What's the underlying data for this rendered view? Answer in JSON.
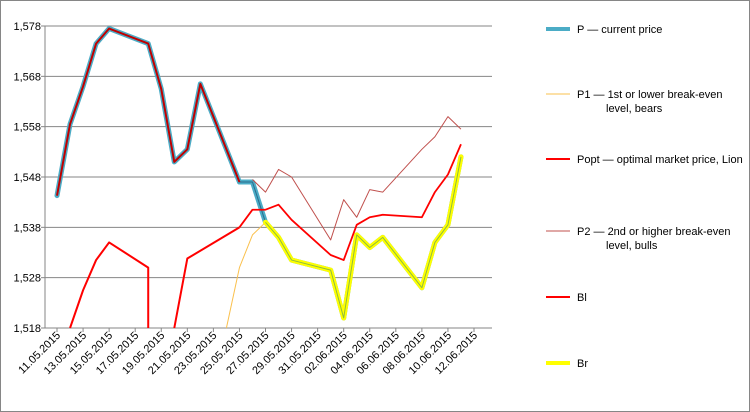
{
  "chart_data": {
    "type": "line",
    "title": "",
    "xlabel": "",
    "ylabel": "",
    "ylim": [
      1518,
      1578
    ],
    "yticks": [
      "1,518",
      "1,528",
      "1,538",
      "1,548",
      "1,558",
      "1,568",
      "1,578"
    ],
    "ytick_values": [
      1518,
      1528,
      1538,
      1548,
      1558,
      1568,
      1578
    ],
    "xticks": [
      "11.05.2015",
      "13.05.2015",
      "15.05.2015",
      "17.05.2015",
      "19.05.2015",
      "21.05.2015",
      "23.05.2015",
      "25.05.2015",
      "27.05.2015",
      "29.05.2015",
      "31.05.2015",
      "02.06.2015",
      "04.06.2015",
      "06.06.2015",
      "08.06.2015",
      "10.06.2015",
      "12.06.2015"
    ],
    "xlim": [
      "11.05.2015",
      "12.06.2015"
    ],
    "grid": "horizontal",
    "legend_position": "right",
    "series": [
      {
        "name": "P — current price",
        "color": "#4bacc6",
        "style": "halo",
        "points": [
          [
            "11.05.2015",
            1544.3
          ],
          [
            "12.05.2015",
            1558.5
          ],
          [
            "13.05.2015",
            1566.0
          ],
          [
            "14.05.2015",
            1574.5
          ],
          [
            "15.05.2015",
            1577.5
          ],
          [
            "18.05.2015",
            1574.5
          ],
          [
            "19.05.2015",
            1565.5
          ],
          [
            "20.05.2015",
            1551.0
          ],
          [
            "21.05.2015",
            1553.5
          ],
          [
            "22.05.2015",
            1566.5
          ],
          [
            "25.05.2015",
            1547.0
          ],
          [
            "26.05.2015",
            1547.0
          ],
          [
            "27.05.2015",
            1539.0
          ],
          [
            "28.05.2015",
            1536.0
          ],
          [
            "29.05.2015",
            1531.5
          ],
          [
            "01.06.2015",
            1529.5
          ],
          [
            "02.06.2015",
            1520.0
          ],
          [
            "03.06.2015",
            1536.5
          ],
          [
            "04.06.2015",
            1534.0
          ],
          [
            "05.06.2015",
            1536.0
          ],
          [
            "08.06.2015",
            1526.0
          ],
          [
            "09.06.2015",
            1535.0
          ],
          [
            "10.06.2015",
            1538.5
          ],
          [
            "11.06.2015",
            1552.0
          ]
        ]
      },
      {
        "name": "P1 — 1st or lower break-even level, bears",
        "color": "#fac04d",
        "style": "thin",
        "points": [
          [
            "24.05.2015",
            1518.0
          ],
          [
            "25.05.2015",
            1530.0
          ],
          [
            "26.05.2015",
            1536.5
          ],
          [
            "27.05.2015",
            1539.0
          ]
        ]
      },
      {
        "name": "Popt — optimal market price, Lion",
        "color": "#ff0000",
        "style": "medium",
        "points": [
          [
            "25.05.2015",
            1538.0
          ],
          [
            "26.05.2015",
            1541.5
          ],
          [
            "27.05.2015",
            1541.5
          ],
          [
            "28.05.2015",
            1542.5
          ],
          [
            "29.05.2015",
            1539.5
          ],
          [
            "01.06.2015",
            1532.5
          ],
          [
            "02.06.2015",
            1531.5
          ],
          [
            "03.06.2015",
            1538.5
          ],
          [
            "04.06.2015",
            1540.0
          ],
          [
            "05.06.2015",
            1540.5
          ],
          [
            "08.06.2015",
            1540.0
          ],
          [
            "09.06.2015",
            1545.0
          ],
          [
            "10.06.2015",
            1548.5
          ],
          [
            "11.06.2015",
            1554.5
          ]
        ]
      },
      {
        "name": "P2 — 2nd or higher break-even level, bulls",
        "color": "#c0504d",
        "style": "thin",
        "points": [
          [
            "26.05.2015",
            1547.5
          ],
          [
            "27.05.2015",
            1545.0
          ],
          [
            "28.05.2015",
            1549.5
          ],
          [
            "29.05.2015",
            1548.0
          ],
          [
            "01.06.2015",
            1535.5
          ],
          [
            "02.06.2015",
            1543.5
          ],
          [
            "03.06.2015",
            1540.0
          ],
          [
            "04.06.2015",
            1545.5
          ],
          [
            "05.06.2015",
            1545.0
          ],
          [
            "08.06.2015",
            1553.5
          ],
          [
            "09.06.2015",
            1556.0
          ],
          [
            "10.06.2015",
            1560.0
          ],
          [
            "11.06.2015",
            1557.5
          ]
        ]
      },
      {
        "name": "Bl",
        "color": "#ff0000",
        "style": "bl",
        "segments": [
          [
            [
              "12.05.2015",
              1518.0
            ],
            [
              "13.05.2015",
              1525.5
            ],
            [
              "14.05.2015",
              1531.5
            ],
            [
              "15.05.2015",
              1535.0
            ],
            [
              "18.05.2015",
              1530.0
            ],
            [
              "18.05.2015",
              1518.0
            ]
          ],
          [
            [
              "20.05.2015",
              1518.0
            ],
            [
              "21.05.2015",
              1531.8
            ],
            [
              "25.05.2015",
              1538.0
            ]
          ],
          [
            [
              "01.06.2015",
              1532.0
            ]
          ],
          [
            [
              "11.06.2015",
              1554.5
            ]
          ]
        ]
      },
      {
        "name": "Br",
        "color": "#ffff00",
        "style": "halo",
        "points": [
          [
            "27.05.2015",
            1539.0
          ],
          [
            "28.05.2015",
            1536.0
          ],
          [
            "29.05.2015",
            1531.5
          ],
          [
            "01.06.2015",
            1529.5
          ],
          [
            "02.06.2015",
            1520.0
          ],
          [
            "03.06.2015",
            1536.5
          ],
          [
            "04.06.2015",
            1534.0
          ],
          [
            "05.06.2015",
            1536.0
          ],
          [
            "08.06.2015",
            1526.0
          ],
          [
            "09.06.2015",
            1535.0
          ],
          [
            "10.06.2015",
            1538.5
          ],
          [
            "11.06.2015",
            1552.0
          ]
        ]
      }
    ]
  }
}
